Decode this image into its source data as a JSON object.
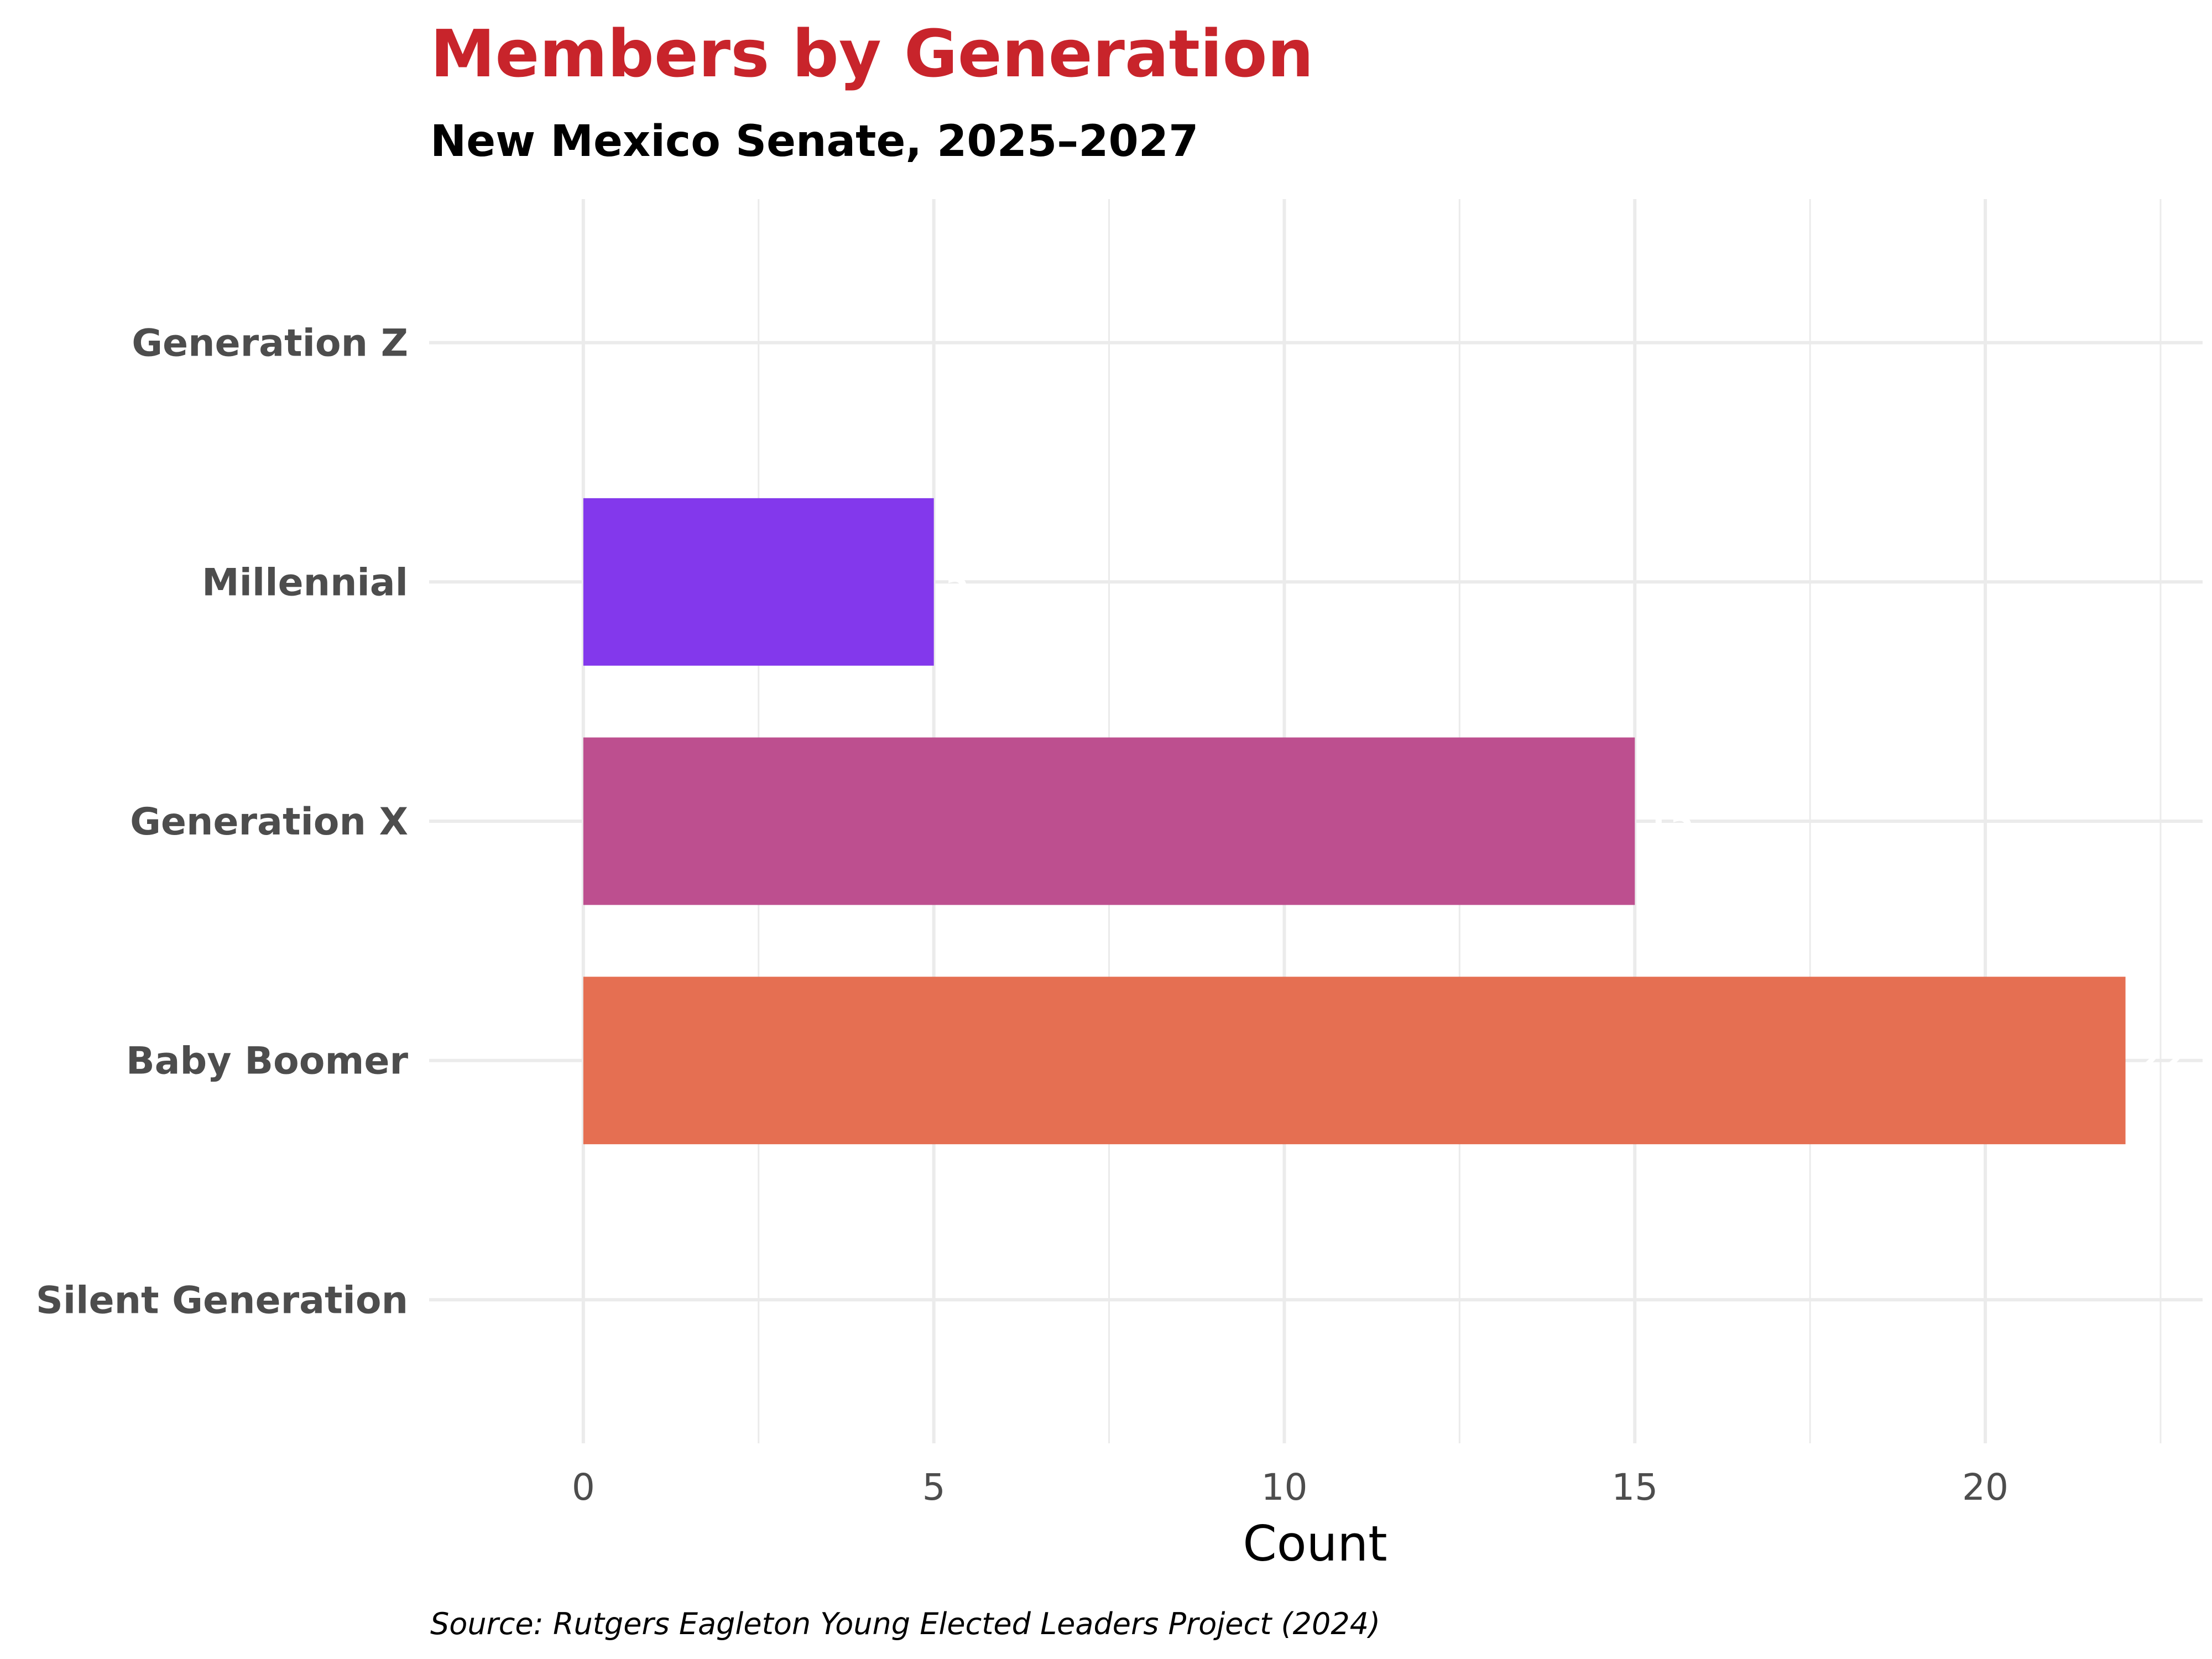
{
  "chart_data": {
    "type": "bar",
    "orientation": "horizontal",
    "title": "Members by Generation",
    "subtitle": "New Mexico Senate, 2025–2027",
    "xlabel": "Count",
    "ylabel": "",
    "caption": "Source: Rutgers Eagleton Young Elected Leaders Project (2024)",
    "categories": [
      "Generation Z",
      "Millennial",
      "Generation X",
      "Baby Boomer",
      "Silent Generation"
    ],
    "values": [
      0,
      5,
      15,
      22,
      0
    ],
    "data_labels": [
      "",
      "5",
      "15",
      "22",
      ""
    ],
    "colors": [
      "#8338ec",
      "#8338ec",
      "#bd4f8f",
      "#e56f52",
      "#e56f52"
    ],
    "xlim": [
      -2.2,
      23.1
    ],
    "xticks": [
      0,
      5,
      10,
      15,
      20
    ],
    "xtick_labels": [
      "0",
      "5",
      "10",
      "15",
      "20"
    ],
    "grid": true,
    "title_color": "#c8242b"
  }
}
